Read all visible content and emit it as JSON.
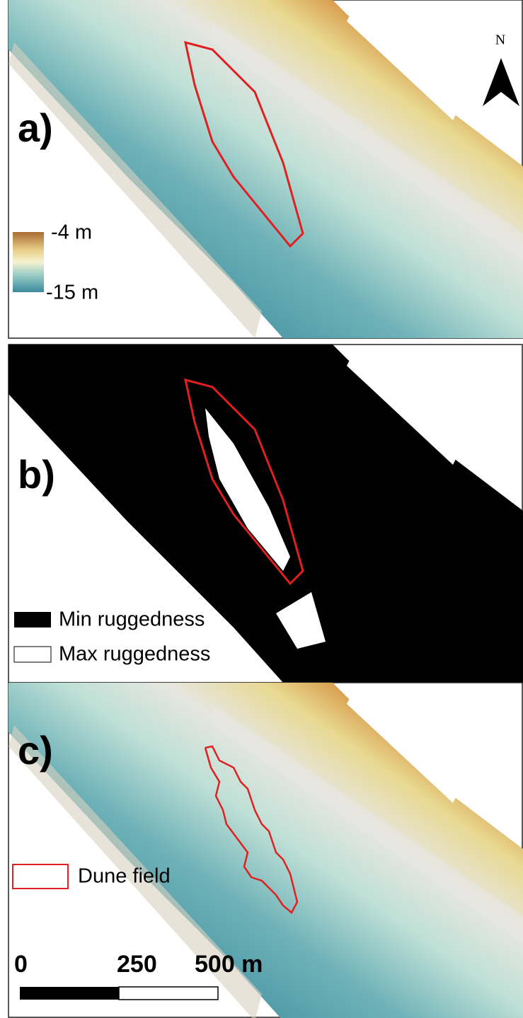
{
  "panels": [
    {
      "label": "a)"
    },
    {
      "label": "b)"
    },
    {
      "label": "c)"
    }
  ],
  "north_arrow": {
    "label": "N"
  },
  "depth_legend": {
    "max": "-4 m",
    "min": "-15 m"
  },
  "ruggedness_legend": {
    "min": "Min ruggedness",
    "max": "Max ruggedness"
  },
  "dune_legend": {
    "label": "Dune field"
  },
  "scale_bar": {
    "labels": [
      "0",
      "250",
      "500 m"
    ]
  }
}
